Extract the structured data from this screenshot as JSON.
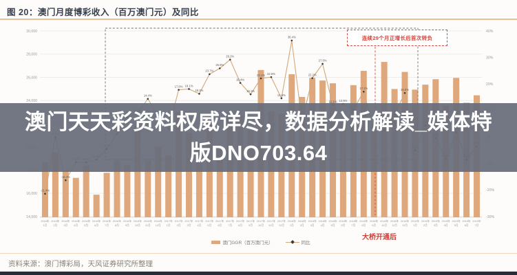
{
  "page": {
    "figure_label": "图 20：",
    "figure_title": "澳门月度博彩收入（百万澳门元）及同比",
    "source": "资料来源：澳门博彩局，天风证券研究所整理",
    "overlay_line1": "澳门天天彩资料权威详尽，数据分析解读_媒体特",
    "overlay_line2": "版DNO703.64",
    "annotation_streak": "连续29个月正增长后首次转负",
    "annotation_bridge": "大桥开通后"
  },
  "legend": {
    "bars_label": "澳门GGR（百万澳门元）",
    "line_label": "同比"
  },
  "colors": {
    "bar": "#dfa77c",
    "line": "#d2a878",
    "marker": "#3b3b3b",
    "grid": "#ececea",
    "accent_red": "#cd4a41",
    "dashed_box": "#6f6f6f",
    "overlay_bg": "#676d7a",
    "title": "#39404d"
  },
  "chart_data": {
    "type": "bar",
    "subtype": "bar+line combo, line on right axis",
    "title": "澳门月度博彩收入（百万澳门元）及同比",
    "categories": [
      "2016年1月",
      "2016年2月",
      "2016年3月",
      "2016年4月",
      "2016年5月",
      "2016年6月",
      "2016年7月",
      "2016年8月",
      "2016年9月",
      "2016年10月",
      "2016年11月",
      "2016年12月",
      "2017年1月",
      "2017年2月",
      "2017年3月",
      "2017年4月",
      "2017年5月",
      "2017年6月",
      "2017年7月",
      "2017年8月",
      "2017年9月",
      "2017年10月",
      "2017年11月",
      "2017年12月",
      "2018年1月",
      "2018年2月",
      "2018年3月",
      "2018年4月",
      "2018年5月",
      "2018年6月",
      "2018年7月",
      "2018年8月",
      "2018年9月",
      "2018年10月",
      "2018年11月",
      "2018年12月",
      "2019年1月",
      "2019年2月",
      "2019年3月",
      "2019年4月",
      "2019年5月",
      "2019年6月",
      "2019年7月"
    ],
    "series": [
      {
        "name": "澳门GGR（百万澳门元）",
        "type": "bar",
        "axis": "left",
        "values": [
          18674,
          19519,
          17980,
          17335,
          18389,
          15885,
          17771,
          18836,
          18435,
          21811,
          18826,
          19976,
          19255,
          22993,
          21233,
          20164,
          22743,
          19992,
          22965,
          22675,
          21408,
          26631,
          23078,
          22878,
          26265,
          24312,
          25952,
          25727,
          25488,
          22490,
          25327,
          26559,
          21952,
          27328,
          24995,
          26468,
          24942,
          25370,
          25840,
          23588,
          25952,
          23812,
          24453
        ]
      },
      {
        "name": "同比",
        "type": "line",
        "axis": "right",
        "values": [
          -21.4,
          -0.1,
          -16.3,
          -9.5,
          -9.6,
          -8.5,
          -4.5,
          1.1,
          7.4,
          8.8,
          14.4,
          8.0,
          3.1,
          17.8,
          18.1,
          16.3,
          23.7,
          25.9,
          29.2,
          20.4,
          16.1,
          22.1,
          22.6,
          14.6,
          36.4,
          5.7,
          22.2,
          27.6,
          12.1,
          12.5,
          10.3,
          17.1,
          2.8,
          2.6,
          8.5,
          16.6,
          -5.0,
          4.4,
          -0.4,
          -8.3,
          1.8,
          -8.5,
          -3.5
        ]
      }
    ],
    "left_axis": {
      "min": 14000,
      "max": 30000,
      "step": 2000,
      "ticks": [
        "30,000",
        "28,000",
        "26,000",
        "24,000",
        "22,000",
        "20,000",
        "18,000",
        "16,000",
        "14,000"
      ]
    },
    "right_axis": {
      "min": -30,
      "max": 40,
      "step": 10,
      "ticks": [
        "40%",
        "30%",
        "20%",
        "10%",
        "0%",
        "-10%",
        "-20%",
        "-30%"
      ]
    },
    "grid": true,
    "legend_position": "bottom",
    "annotations": [
      {
        "text": "连续29个月正增长后首次转负",
        "style": "red dashed box, top right"
      },
      {
        "text": "大桥开通后",
        "style": "red label below axis near 2018年10月, red dashed vertical line"
      },
      {
        "text": "",
        "style": "dark dashed rectangle highlighting 2016年7月–2019年1月 growth streak"
      }
    ]
  }
}
